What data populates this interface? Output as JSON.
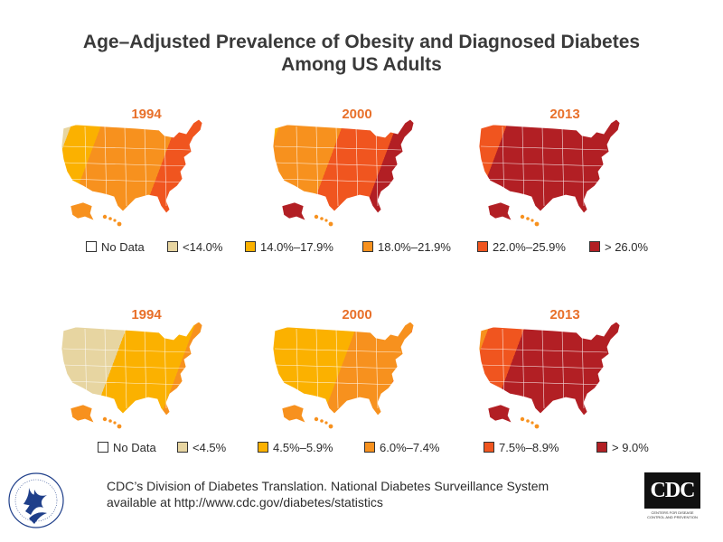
{
  "title": {
    "line1": "Age–Adjusted Prevalence of Obesity and Diagnosed Diabetes",
    "line2": "Among US Adults"
  },
  "colors": {
    "no_data": "#ffffff",
    "c1": "#e7d5a1",
    "c2": "#fbb100",
    "c3": "#f7911e",
    "c4": "#f0551f",
    "c5": "#b21f24",
    "year_label": "#e8702a"
  },
  "obesity": {
    "maps": [
      {
        "year": "1994",
        "shading": [
          0.08,
          0.2,
          0.5,
          0.22,
          0.0
        ]
      },
      {
        "year": "2000",
        "shading": [
          0.0,
          0.06,
          0.42,
          0.36,
          0.16
        ]
      },
      {
        "year": "2013",
        "shading": [
          0.0,
          0.0,
          0.04,
          0.16,
          0.8
        ]
      }
    ],
    "legend": [
      {
        "label": "No Data",
        "color": "#ffffff"
      },
      {
        "label": "<14.0%",
        "color": "#e7d5a1"
      },
      {
        "label": "14.0%–17.9%",
        "color": "#fbb100"
      },
      {
        "label": "18.0%–21.9%",
        "color": "#f7911e"
      },
      {
        "label": "22.0%–25.9%",
        "color": "#f0551f"
      },
      {
        "label": "> 26.0%",
        "color": "#b21f24"
      }
    ]
  },
  "diabetes": {
    "maps": [
      {
        "year": "1994",
        "shading": [
          0.45,
          0.45,
          0.1,
          0.0,
          0.0
        ]
      },
      {
        "year": "2000",
        "shading": [
          0.02,
          0.55,
          0.38,
          0.05,
          0.0
        ]
      },
      {
        "year": "2013",
        "shading": [
          0.0,
          0.0,
          0.08,
          0.24,
          0.68
        ]
      }
    ],
    "legend": [
      {
        "label": "No Data",
        "color": "#ffffff"
      },
      {
        "label": "<4.5%",
        "color": "#e7d5a1"
      },
      {
        "label": "4.5%–5.9%",
        "color": "#fbb100"
      },
      {
        "label": "6.0%–7.4%",
        "color": "#f7911e"
      },
      {
        "label": "7.5%–8.9%",
        "color": "#f0551f"
      },
      {
        "label": "> 9.0%",
        "color": "#b21f24"
      }
    ]
  },
  "footer": {
    "line1": "CDC’s Division of Diabetes Translation. National Diabetes Surveillance System",
    "line2": "available at http://www.cdc.gov/diabetes/statistics"
  },
  "logos": {
    "hhs": "hhs-eagle-seal",
    "cdc": "CDC",
    "cdc_tagline": "CENTERS FOR DISEASE CONTROL AND PREVENTION"
  }
}
